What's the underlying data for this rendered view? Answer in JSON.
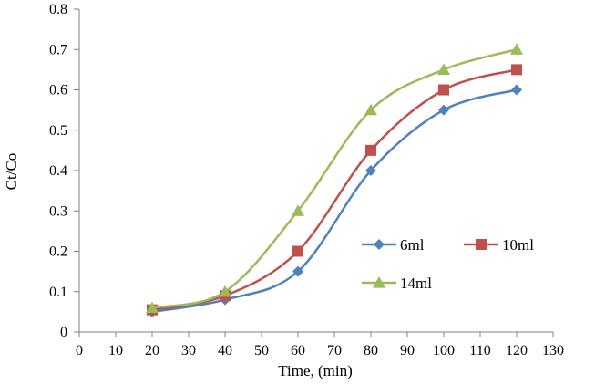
{
  "chart_data": {
    "type": "line",
    "title": "",
    "xlabel": "Time, (min)",
    "ylabel": "Ct/Co",
    "xlim": [
      0,
      130
    ],
    "ylim": [
      0,
      0.8
    ],
    "xticks": [
      0,
      10,
      20,
      30,
      40,
      50,
      60,
      70,
      80,
      90,
      100,
      110,
      120,
      130
    ],
    "yticks": [
      0,
      0.1,
      0.2,
      0.3,
      0.4,
      0.5,
      0.6,
      0.7,
      0.8
    ],
    "ytick_labels": [
      "0",
      "0.1",
      "0.2",
      "0.3",
      "0.4",
      "0.5",
      "0.6",
      "0.7",
      "0.8"
    ],
    "grid": false,
    "smooth": true,
    "legend_position": "right-middle",
    "x": [
      20,
      40,
      60,
      80,
      100,
      120
    ],
    "series": [
      {
        "name": "6ml",
        "values": [
          0.05,
          0.08,
          0.15,
          0.4,
          0.55,
          0.6
        ],
        "color": "#4F81BD",
        "marker": "diamond"
      },
      {
        "name": "10ml",
        "values": [
          0.055,
          0.09,
          0.2,
          0.45,
          0.6,
          0.65
        ],
        "color": "#C0504D",
        "marker": "square"
      },
      {
        "name": "14ml",
        "values": [
          0.06,
          0.1,
          0.3,
          0.55,
          0.65,
          0.7
        ],
        "color": "#9BBB59",
        "marker": "triangle"
      }
    ]
  }
}
